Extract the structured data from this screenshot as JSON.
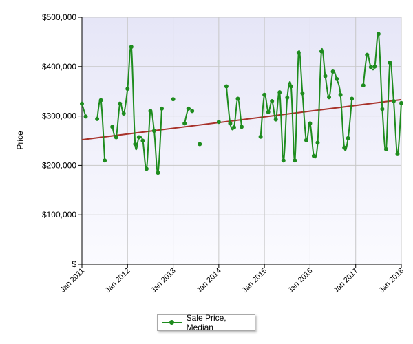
{
  "chart_data": {
    "type": "line",
    "ylabel": "Price",
    "xlabel": "",
    "ylim": [
      0,
      500000
    ],
    "y_ticks": [
      {
        "value": 0,
        "label": "$"
      },
      {
        "value": 100000,
        "label": "$100,000"
      },
      {
        "value": 200000,
        "label": "$200,000"
      },
      {
        "value": 300000,
        "label": "$300,000"
      },
      {
        "value": 400000,
        "label": "$400,000"
      },
      {
        "value": 500000,
        "label": "$500,000"
      }
    ],
    "xlim": [
      "2011-01",
      "2018-01"
    ],
    "x_ticks": [
      {
        "value": "2011-01",
        "label": "Jan 2011"
      },
      {
        "value": "2012-01",
        "label": "Jan 2012"
      },
      {
        "value": "2013-01",
        "label": "Jan 2013"
      },
      {
        "value": "2014-01",
        "label": "Jan 2014"
      },
      {
        "value": "2015-01",
        "label": "Jan 2015"
      },
      {
        "value": "2016-01",
        "label": "Jan 2016"
      },
      {
        "value": "2017-01",
        "label": "Jan 2017"
      },
      {
        "value": "2018-01",
        "label": "Jan 2018"
      }
    ],
    "grid": true,
    "legend_position": "bottom-center",
    "series": [
      {
        "name": "Sale Price, Median",
        "color": "#1e8c1e",
        "points": [
          {
            "x": "2011-01",
            "y": 325000
          },
          {
            "x": "2011-02",
            "y": 299000
          },
          {
            "x": "2011-03",
            "y": null
          },
          {
            "x": "2011-04",
            "y": null
          },
          {
            "x": "2011-05",
            "y": 294000
          },
          {
            "x": "2011-06",
            "y": 332000
          },
          {
            "x": "2011-07",
            "y": 210000
          },
          {
            "x": "2011-08",
            "y": null
          },
          {
            "x": "2011-09",
            "y": 278000
          },
          {
            "x": "2011-10",
            "y": 257000
          },
          {
            "x": "2011-11",
            "y": 325000
          },
          {
            "x": "2011-12",
            "y": 305000
          },
          {
            "x": "2012-01",
            "y": 355000
          },
          {
            "x": "2012-02",
            "y": 440000
          },
          {
            "x": "2012-03",
            "y": 243000
          },
          {
            "x": "2012-04",
            "y": 257000
          },
          {
            "x": "2012-05",
            "y": 250000
          },
          {
            "x": "2012-06",
            "y": 193000
          },
          {
            "x": "2012-07",
            "y": 310000
          },
          {
            "x": "2012-08",
            "y": 270000
          },
          {
            "x": "2012-09",
            "y": 185000
          },
          {
            "x": "2012-10",
            "y": 315000
          },
          {
            "x": "2012-11",
            "y": null
          },
          {
            "x": "2012-12",
            "y": null
          },
          {
            "x": "2013-01",
            "y": 334000
          },
          {
            "x": "2013-02",
            "y": null
          },
          {
            "x": "2013-03",
            "y": null
          },
          {
            "x": "2013-04",
            "y": 285000
          },
          {
            "x": "2013-05",
            "y": 315000
          },
          {
            "x": "2013-06",
            "y": 310000
          },
          {
            "x": "2013-07",
            "y": null
          },
          {
            "x": "2013-08",
            "y": 243000
          },
          {
            "x": "2013-09",
            "y": null
          },
          {
            "x": "2013-10",
            "y": null
          },
          {
            "x": "2013-11",
            "y": null
          },
          {
            "x": "2013-12",
            "y": null
          },
          {
            "x": "2014-01",
            "y": 288000
          },
          {
            "x": "2014-02",
            "y": null
          },
          {
            "x": "2014-03",
            "y": 360000
          },
          {
            "x": "2014-04",
            "y": 285000
          },
          {
            "x": "2014-05",
            "y": 277000
          },
          {
            "x": "2014-06",
            "y": 335000
          },
          {
            "x": "2014-07",
            "y": 278000
          },
          {
            "x": "2014-08",
            "y": null
          },
          {
            "x": "2014-09",
            "y": null
          },
          {
            "x": "2014-10",
            "y": null
          },
          {
            "x": "2014-11",
            "y": null
          },
          {
            "x": "2014-12",
            "y": 258000
          },
          {
            "x": "2015-01",
            "y": 343000
          },
          {
            "x": "2015-02",
            "y": 308000
          },
          {
            "x": "2015-03",
            "y": 330000
          },
          {
            "x": "2015-04",
            "y": 293000
          },
          {
            "x": "2015-05",
            "y": 348000
          },
          {
            "x": "2015-06",
            "y": 210000
          },
          {
            "x": "2015-07",
            "y": 337000
          },
          {
            "x": "2015-08",
            "y": 360000
          },
          {
            "x": "2015-09",
            "y": 210000
          },
          {
            "x": "2015-10",
            "y": 428000
          },
          {
            "x": "2015-11",
            "y": 346000
          },
          {
            "x": "2015-12",
            "y": 251000
          },
          {
            "x": "2016-01",
            "y": 285000
          },
          {
            "x": "2016-02",
            "y": 219000
          },
          {
            "x": "2016-03",
            "y": 246000
          },
          {
            "x": "2016-04",
            "y": 431000
          },
          {
            "x": "2016-05",
            "y": 381000
          },
          {
            "x": "2016-06",
            "y": 338000
          },
          {
            "x": "2016-07",
            "y": 390000
          },
          {
            "x": "2016-08",
            "y": 375000
          },
          {
            "x": "2016-09",
            "y": 343000
          },
          {
            "x": "2016-10",
            "y": 236000
          },
          {
            "x": "2016-11",
            "y": 255000
          },
          {
            "x": "2016-12",
            "y": 335000
          },
          {
            "x": "2017-01",
            "y": null
          },
          {
            "x": "2017-02",
            "y": null
          },
          {
            "x": "2017-03",
            "y": 362000
          },
          {
            "x": "2017-04",
            "y": 424000
          },
          {
            "x": "2017-05",
            "y": 399000
          },
          {
            "x": "2017-06",
            "y": 400000
          },
          {
            "x": "2017-07",
            "y": 466000
          },
          {
            "x": "2017-08",
            "y": 314000
          },
          {
            "x": "2017-09",
            "y": 233000
          },
          {
            "x": "2017-10",
            "y": 408000
          },
          {
            "x": "2017-11",
            "y": 330000
          },
          {
            "x": "2017-12",
            "y": 223000
          },
          {
            "x": "2018-01",
            "y": 326000
          }
        ]
      }
    ],
    "trendline": {
      "color": "#a8322a",
      "start": {
        "x": "2011-01",
        "y": 252000
      },
      "end": {
        "x": "2018-01",
        "y": 333000
      }
    }
  }
}
